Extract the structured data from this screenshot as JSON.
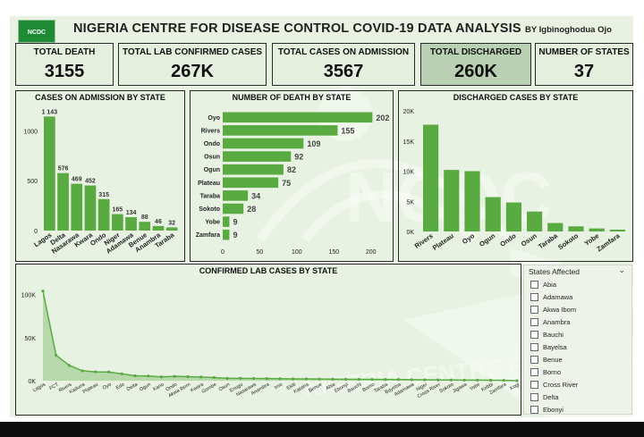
{
  "header": {
    "logo_text": "NCDC",
    "title": "NIGERIA CENTRE FOR DISEASE CONTROL COVID-19 DATA ANALYSIS",
    "byline": "BY  Igbinoghodua Ojo"
  },
  "cards": [
    {
      "label": "TOTAL DEATH",
      "value": "3155"
    },
    {
      "label": "TOTAL LAB CONFIRMED CASES",
      "value": "267K"
    },
    {
      "label": "TOTAL CASES ON ADMISSION",
      "value": "3567"
    },
    {
      "label": "TOTAL DISCHARGED",
      "value": "260K"
    },
    {
      "label": "NUMBER OF STATES",
      "value": "37"
    }
  ],
  "watermark": {
    "text": "NIGERIA CENTRE FOR DISEASE CONTROL",
    "letters": "NCDC"
  },
  "colors": {
    "bar": "#5aaa42",
    "background": "#e9f2e2",
    "watermark": "#ffffff"
  },
  "slicer": {
    "title": "States Affected",
    "items": [
      "Abia",
      "Adamawa",
      "Akwa Ibom",
      "Anambra",
      "Bauchi",
      "Bayelsa",
      "Benue",
      "Borno",
      "Cross River",
      "Delta",
      "Ebonyi"
    ]
  },
  "chart_data": [
    {
      "type": "bar",
      "title": "CASES ON ADMISSION BY STATE",
      "categories": [
        "Lagos",
        "Delta",
        "Nasarawa",
        "Kwara",
        "Ondo",
        "Niger",
        "Adamawa",
        "Benue",
        "Anambra",
        "Taraba"
      ],
      "values": [
        1143,
        576,
        469,
        452,
        315,
        165,
        134,
        88,
        46,
        32
      ],
      "data_labels": [
        "1 143",
        "576",
        "469",
        "452",
        "315",
        "165",
        "134",
        "88",
        "46",
        "32"
      ],
      "yticks": [
        "0",
        "500",
        "1000"
      ],
      "ylim": [
        0,
        1200
      ],
      "grid": false
    },
    {
      "type": "bar",
      "orientation": "horizontal",
      "title": "NUMBER OF DEATH BY STATE",
      "categories": [
        "Oyo",
        "Rivers",
        "Ondo",
        "Osun",
        "Ogun",
        "Plateau",
        "Taraba",
        "Sokoto",
        "Yobe",
        "Zamfara"
      ],
      "values": [
        202,
        155,
        109,
        92,
        82,
        75,
        34,
        28,
        9,
        9
      ],
      "xticks": [
        "0",
        "50",
        "100",
        "150",
        "200"
      ],
      "xlim": [
        0,
        210
      ],
      "grid": false
    },
    {
      "type": "bar",
      "title": "DISCHARGED CASES BY STATE",
      "categories": [
        "Rivers",
        "Plateau",
        "Oyo",
        "Ogun",
        "Ondo",
        "Osun",
        "Taraba",
        "Sokoto",
        "Yobe",
        "Zamfara"
      ],
      "values": [
        17700,
        10200,
        10000,
        5700,
        4800,
        3300,
        1400,
        850,
        500,
        300
      ],
      "yticks": [
        "0K",
        "5K",
        "10K",
        "15K",
        "20K"
      ],
      "ylim": [
        0,
        20000
      ],
      "grid": false
    },
    {
      "type": "area",
      "title": "CONFIRMED LAB CASES BY STATE",
      "categories": [
        "Lagos",
        "FCT",
        "Rivers",
        "Kaduna",
        "Plateau",
        "Oyo",
        "Edo",
        "Delta",
        "Ogun",
        "Kano",
        "Ondo",
        "Akwa Ibom",
        "Kwara",
        "Gombe",
        "Osun",
        "Enugu",
        "Nasarawa",
        "Anambra",
        "Imo",
        "Ekiti",
        "Katsina",
        "Benue",
        "Abia",
        "Ebonyi",
        "Bauchi",
        "Borno",
        "Taraba",
        "Bayelsa",
        "Adamawa",
        "Niger",
        "Cross River",
        "Sokoto",
        "Jigawa",
        "Yobe",
        "Kebbi",
        "Zamfara",
        "Kogi"
      ],
      "values": [
        104000,
        29500,
        17800,
        11500,
        10300,
        10100,
        7900,
        5700,
        5500,
        4400,
        5000,
        4700,
        4300,
        3600,
        2700,
        2700,
        2600,
        2500,
        2300,
        2100,
        2100,
        1900,
        1800,
        1700,
        1600,
        1500,
        1400,
        1400,
        1200,
        1000,
        900,
        800,
        700,
        600,
        500,
        400,
        10
      ],
      "yticks": [
        "0K",
        "50K",
        "100K"
      ],
      "ylim": [
        0,
        110000
      ],
      "grid": false
    }
  ]
}
